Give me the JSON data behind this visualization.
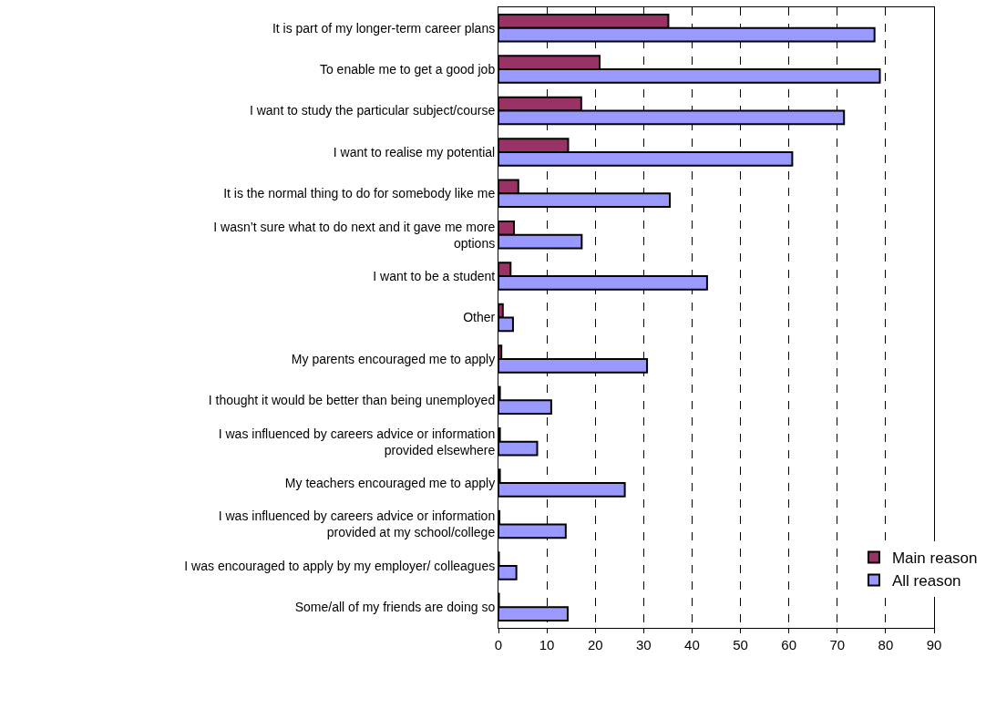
{
  "chart_data": {
    "type": "bar",
    "orientation": "horizontal",
    "categories": [
      "It is part of my longer-term career plans",
      "To enable me to get a good job",
      "I want to study the particular subject/course",
      "I want to realise my potential",
      "It is the normal thing to do for somebody like me",
      "I wasn’t sure what to do next and it gave me more options",
      "I want to be a student",
      "Other",
      "My parents encouraged me to apply",
      "I thought it would be better than being unemployed",
      "I was influenced by careers advice or information provided elsewhere",
      "My teachers encouraged me to apply",
      "I was influenced by careers advice or information provided at my school/college",
      "I was encouraged to apply by my employer/ colleagues",
      "Some/all of my friends are doing so"
    ],
    "series": [
      {
        "name": "Main reason",
        "color": "#993366",
        "values": [
          35.1,
          20.9,
          17.1,
          14.4,
          4.1,
          3.2,
          2.5,
          0.9,
          0.6,
          0.3,
          0.3,
          0.3,
          0.2,
          0.1,
          0.1
        ]
      },
      {
        "name": "All reason",
        "color": "#9999ff",
        "values": [
          77.7,
          78.8,
          71.4,
          60.7,
          35.4,
          17.2,
          43.1,
          3.0,
          30.7,
          10.9,
          8.0,
          26.1,
          13.9,
          3.7,
          14.3
        ]
      }
    ],
    "xlim": [
      0,
      90
    ],
    "xticks": [
      0,
      10,
      20,
      30,
      40,
      50,
      60,
      70,
      80,
      90
    ],
    "grid": "x",
    "legend": "bottom right"
  }
}
